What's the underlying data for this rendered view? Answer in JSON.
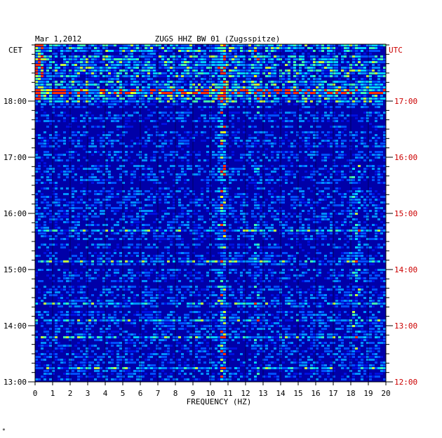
{
  "chart_data": {
    "type": "heatmap",
    "title": "ZUGS HHZ BW 01 (Zugsspitze)",
    "date": "Mar 1,2012",
    "left_timezone": "CET",
    "right_timezone": "UTC",
    "xlabel": "FREQUENCY (HZ)",
    "xlim": [
      0,
      20
    ],
    "x_ticks": [
      "0",
      "1",
      "2",
      "3",
      "4",
      "5",
      "6",
      "7",
      "8",
      "9",
      "10",
      "11",
      "12",
      "13",
      "14",
      "15",
      "16",
      "17",
      "18",
      "19",
      "20"
    ],
    "y_ticks_left": [
      "18:00",
      "17:00",
      "16:00",
      "15:00",
      "14:00",
      "13:00"
    ],
    "y_ticks_right": [
      "17:00",
      "16:00",
      "15:00",
      "14:00",
      "13:00",
      "12:00"
    ],
    "colors": {
      "background": "#0000a8",
      "right_axis_labels": "#cc0000",
      "low": "#0000c0",
      "mid": "#00c8ff",
      "high": "#ffff00",
      "peak": "#ff0000"
    },
    "features": [
      {
        "label": "persistent line",
        "frequency_hz": 10.7
      },
      {
        "label": "intermittent line",
        "frequency_hz": 12.6
      },
      {
        "label": "intermittent band",
        "frequency_hz": 18.3
      }
    ]
  },
  "footer_mark": "*"
}
